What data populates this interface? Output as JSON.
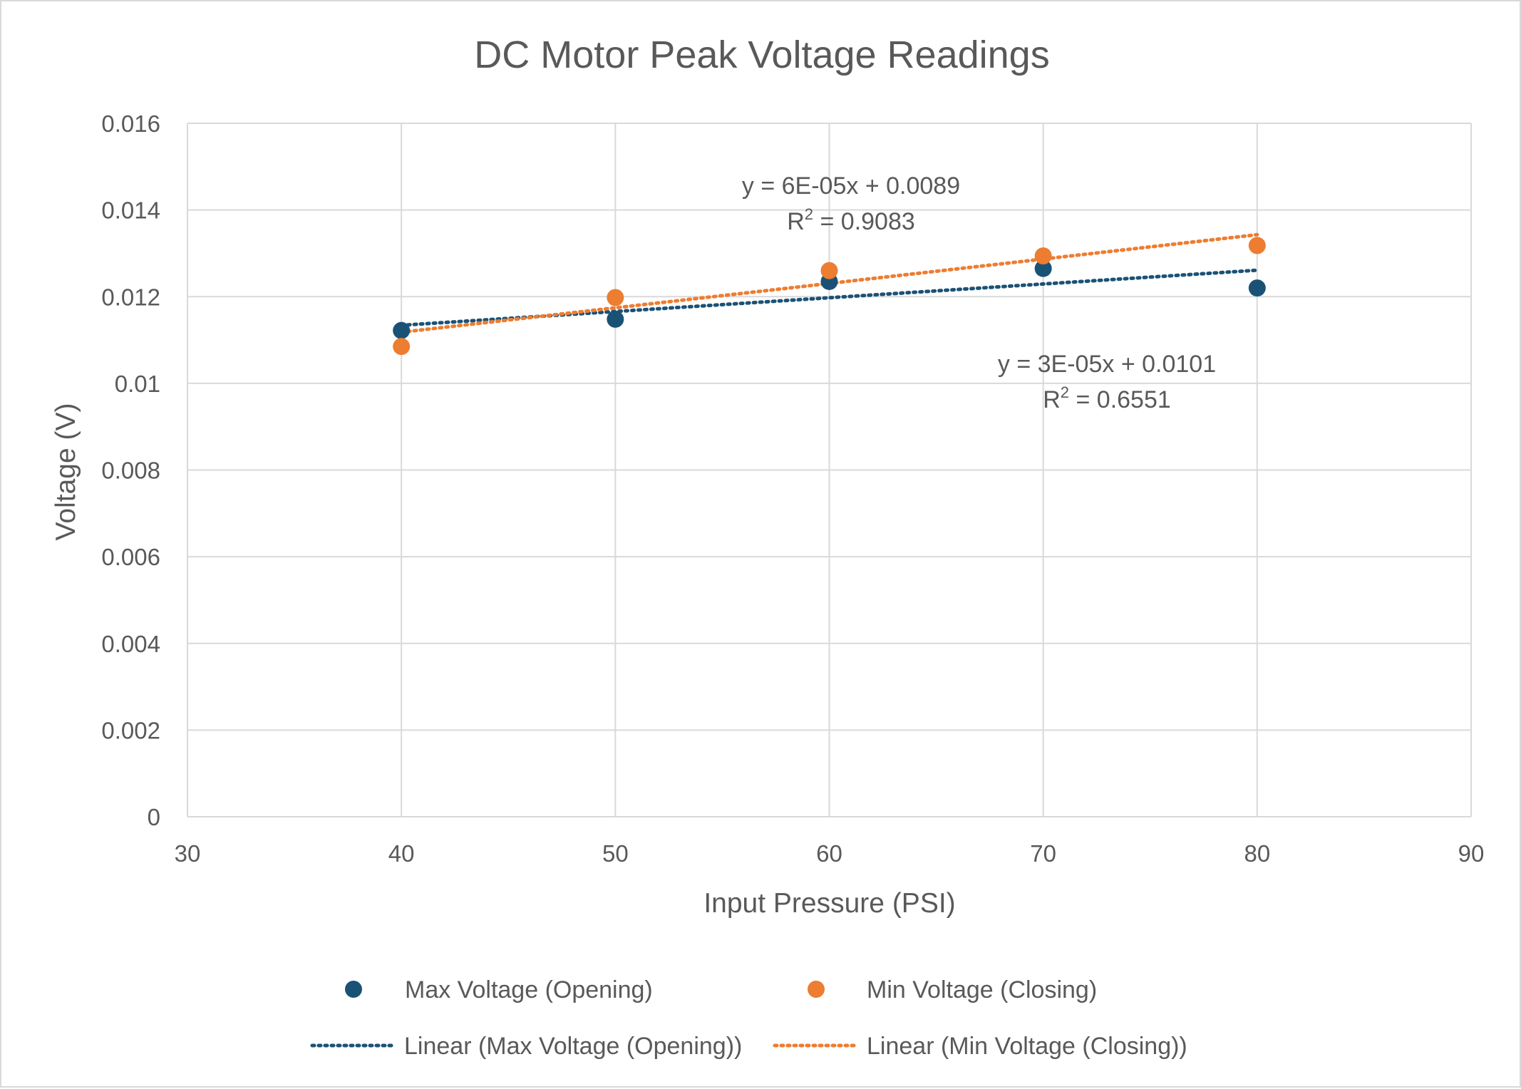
{
  "chart_data": {
    "type": "scatter",
    "title": "DC Motor Peak Voltage Readings",
    "xlabel": "Input Pressure (PSI)",
    "ylabel": "Voltage (V)",
    "xlim": [
      30,
      90
    ],
    "ylim": [
      0,
      0.016
    ],
    "x_ticks": [
      "30",
      "40",
      "50",
      "60",
      "70",
      "80",
      "90"
    ],
    "y_ticks": [
      "0",
      "0.002",
      "0.004",
      "0.006",
      "0.008",
      "0.01",
      "0.012",
      "0.014",
      "0.016"
    ],
    "grid": true,
    "legend_position": "bottom",
    "series": [
      {
        "name": "Max Voltage (Opening)",
        "color": "#1a5276",
        "x": [
          40,
          50,
          60,
          70,
          80
        ],
        "y": [
          0.01122,
          0.01148,
          0.01235,
          0.01265,
          0.0122
        ]
      },
      {
        "name": "Min Voltage (Closing)",
        "color": "#ed7d31",
        "x": [
          40,
          50,
          60,
          70,
          80
        ],
        "y": [
          0.01085,
          0.01198,
          0.0126,
          0.01294,
          0.01318
        ]
      }
    ],
    "trendlines": [
      {
        "name": "Linear (Max Voltage (Opening))",
        "color": "#1a5276",
        "x": [
          40,
          80
        ],
        "y": [
          0.01134,
          0.01261
        ],
        "equation": "y = 3E-05x + 0.0101",
        "r2_prefix": "R",
        "r2_exp": "2",
        "r2_value": " = 0.6551"
      },
      {
        "name": "Linear (Min Voltage (Closing))",
        "color": "#ed7d31",
        "x": [
          40,
          80
        ],
        "y": [
          0.01118,
          0.01343
        ],
        "equation": "y = 6E-05x + 0.0089",
        "r2_prefix": "R",
        "r2_exp": "2",
        "r2_value": " = 0.9083"
      }
    ]
  }
}
